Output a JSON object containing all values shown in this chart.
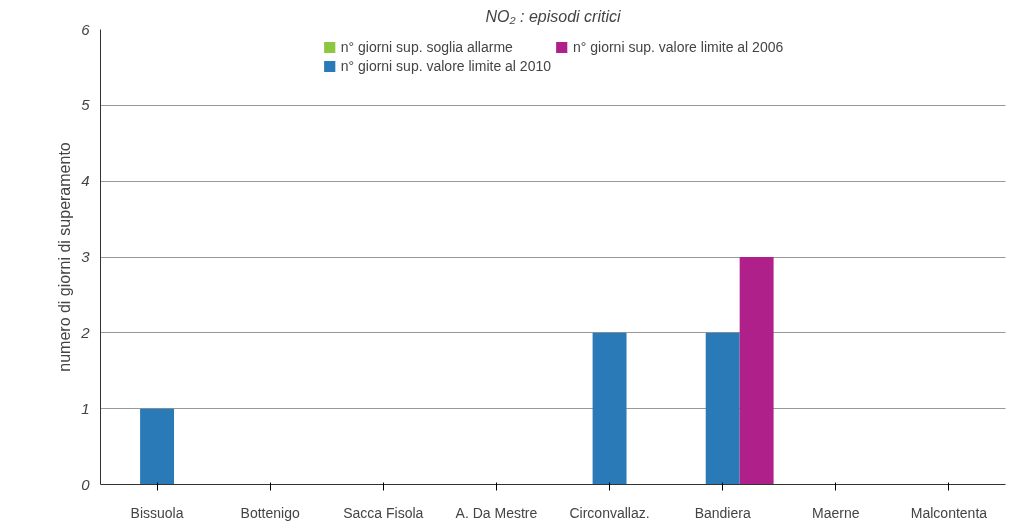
{
  "chart_data": {
    "type": "bar",
    "title": "NO₂ : episodi critici",
    "ylabel": "numero di giorni di superamento",
    "categories": [
      "Bissuola",
      "Bottenigo",
      "Sacca Fisola",
      "A. Da Mestre",
      "Circonvallaz.",
      "Bandiera",
      "Maerne",
      "Malcontenta"
    ],
    "series": [
      {
        "name": "n° giorni sup. soglia allarme",
        "color": "#8dc63f",
        "values": [
          0,
          0,
          0,
          0,
          0,
          0,
          0,
          0
        ]
      },
      {
        "name": "n° giorni sup. valore limite al 2010",
        "color": "#2a7ab8",
        "values": [
          1,
          0,
          0,
          0,
          2,
          2,
          0,
          0
        ]
      },
      {
        "name": "n° giorni sup. valore limite al 2006",
        "color": "#b0208a",
        "values": [
          0,
          0,
          0,
          0,
          0,
          3,
          0,
          0
        ]
      }
    ],
    "ylim": [
      0,
      6
    ],
    "yticks": [
      0,
      1,
      2,
      3,
      4,
      5,
      6
    ],
    "grid": "y",
    "legend": "top"
  }
}
